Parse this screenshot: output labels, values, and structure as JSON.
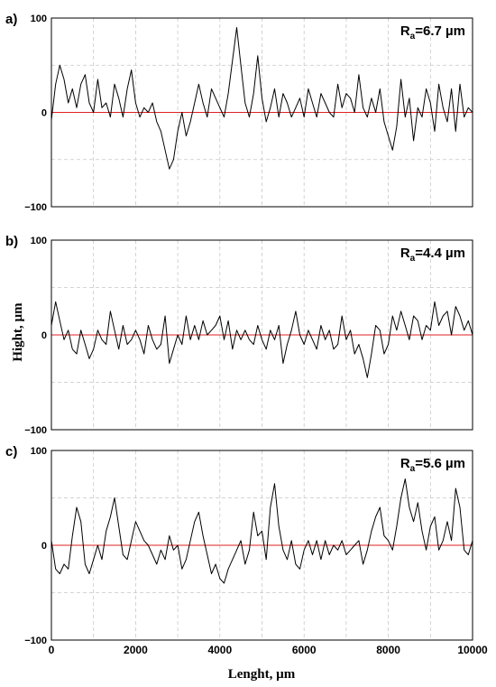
{
  "figure": {
    "y_axis_title": "Hight, µm",
    "x_axis_title": "Lenght, µm",
    "x_tick_labels": [
      "0",
      "2000",
      "4000",
      "6000",
      "8000",
      "10000"
    ]
  },
  "chart_data": [
    {
      "type": "line",
      "panel_label": "a)",
      "ra_symbol": "R",
      "ra_sub": "a",
      "ra_value": "=6.7 µm",
      "y_tick_labels": [
        "100",
        "0",
        "−100"
      ],
      "xlim": [
        0,
        10000
      ],
      "ylim": [
        -100,
        100
      ],
      "grid": true,
      "x": [
        0,
        100,
        200,
        300,
        400,
        500,
        600,
        700,
        800,
        900,
        1000,
        1100,
        1200,
        1300,
        1400,
        1500,
        1600,
        1700,
        1800,
        1900,
        2000,
        2100,
        2200,
        2300,
        2400,
        2500,
        2600,
        2700,
        2800,
        2900,
        3000,
        3100,
        3200,
        3300,
        3400,
        3500,
        3600,
        3700,
        3800,
        3900,
        4000,
        4100,
        4200,
        4300,
        4400,
        4500,
        4600,
        4700,
        4800,
        4900,
        5000,
        5100,
        5200,
        5300,
        5400,
        5500,
        5600,
        5700,
        5800,
        5900,
        6000,
        6100,
        6200,
        6300,
        6400,
        6500,
        6600,
        6700,
        6800,
        6900,
        7000,
        7100,
        7200,
        7300,
        7400,
        7500,
        7600,
        7700,
        7800,
        7900,
        8000,
        8100,
        8200,
        8300,
        8400,
        8500,
        8600,
        8700,
        8800,
        8900,
        9000,
        9100,
        9200,
        9300,
        9400,
        9500,
        9600,
        9700,
        9800,
        9900,
        10000
      ],
      "y": [
        -8,
        30,
        50,
        35,
        10,
        25,
        5,
        30,
        40,
        10,
        0,
        35,
        5,
        10,
        -5,
        30,
        15,
        -5,
        25,
        45,
        10,
        -5,
        5,
        0,
        10,
        -10,
        -20,
        -40,
        -60,
        -50,
        -20,
        0,
        -25,
        -10,
        10,
        30,
        10,
        -5,
        25,
        15,
        5,
        -5,
        20,
        55,
        90,
        50,
        10,
        -5,
        20,
        60,
        15,
        -10,
        5,
        25,
        -5,
        20,
        10,
        -5,
        5,
        15,
        -5,
        25,
        10,
        -5,
        20,
        10,
        0,
        -5,
        30,
        5,
        20,
        15,
        0,
        40,
        5,
        -5,
        15,
        0,
        25,
        -10,
        -25,
        -40,
        -15,
        35,
        -5,
        15,
        -30,
        5,
        -5,
        25,
        10,
        -20,
        30,
        5,
        -10,
        25,
        -20,
        30,
        -5,
        5,
        0
      ]
    },
    {
      "type": "line",
      "panel_label": "b)",
      "ra_symbol": "R",
      "ra_sub": "a",
      "ra_value": "=4.4 µm",
      "y_tick_labels": [
        "100",
        "0",
        "−100"
      ],
      "xlim": [
        0,
        10000
      ],
      "ylim": [
        -100,
        100
      ],
      "grid": true,
      "x": [
        0,
        100,
        200,
        300,
        400,
        500,
        600,
        700,
        800,
        900,
        1000,
        1100,
        1200,
        1300,
        1400,
        1500,
        1600,
        1700,
        1800,
        1900,
        2000,
        2100,
        2200,
        2300,
        2400,
        2500,
        2600,
        2700,
        2800,
        2900,
        3000,
        3100,
        3200,
        3300,
        3400,
        3500,
        3600,
        3700,
        3800,
        3900,
        4000,
        4100,
        4200,
        4300,
        4400,
        4500,
        4600,
        4700,
        4800,
        4900,
        5000,
        5100,
        5200,
        5300,
        5400,
        5500,
        5600,
        5700,
        5800,
        5900,
        6000,
        6100,
        6200,
        6300,
        6400,
        6500,
        6600,
        6700,
        6800,
        6900,
        7000,
        7100,
        7200,
        7300,
        7400,
        7500,
        7600,
        7700,
        7800,
        7900,
        8000,
        8100,
        8200,
        8300,
        8400,
        8500,
        8600,
        8700,
        8800,
        8900,
        9000,
        9100,
        9200,
        9300,
        9400,
        9500,
        9600,
        9700,
        9800,
        9900,
        10000
      ],
      "y": [
        10,
        35,
        15,
        -5,
        5,
        -15,
        -20,
        5,
        -10,
        -25,
        -15,
        5,
        -5,
        -10,
        25,
        5,
        -15,
        10,
        -10,
        -5,
        5,
        -5,
        -20,
        10,
        -5,
        -15,
        -10,
        20,
        -30,
        -15,
        0,
        -10,
        20,
        -5,
        10,
        -5,
        15,
        0,
        5,
        10,
        20,
        -5,
        15,
        -15,
        5,
        -5,
        5,
        -5,
        -10,
        10,
        -5,
        -15,
        5,
        -5,
        10,
        -30,
        -10,
        5,
        25,
        0,
        -10,
        5,
        -5,
        -15,
        10,
        -5,
        5,
        -15,
        -10,
        20,
        -5,
        5,
        -20,
        -10,
        -25,
        -45,
        -20,
        10,
        5,
        -20,
        -10,
        20,
        5,
        25,
        10,
        -5,
        20,
        15,
        -5,
        10,
        5,
        35,
        10,
        20,
        25,
        0,
        30,
        20,
        5,
        15,
        0
      ]
    },
    {
      "type": "line",
      "panel_label": "c)",
      "ra_symbol": "R",
      "ra_sub": "a",
      "ra_value": "=5.6 µm",
      "y_tick_labels": [
        "100",
        "0",
        "−100"
      ],
      "xlim": [
        0,
        10000
      ],
      "ylim": [
        -100,
        100
      ],
      "grid": true,
      "x": [
        0,
        100,
        200,
        300,
        400,
        500,
        600,
        700,
        800,
        900,
        1000,
        1100,
        1200,
        1300,
        1400,
        1500,
        1600,
        1700,
        1800,
        1900,
        2000,
        2100,
        2200,
        2300,
        2400,
        2500,
        2600,
        2700,
        2800,
        2900,
        3000,
        3100,
        3200,
        3300,
        3400,
        3500,
        3600,
        3700,
        3800,
        3900,
        4000,
        4100,
        4200,
        4300,
        4400,
        4500,
        4600,
        4700,
        4800,
        4900,
        5000,
        5100,
        5200,
        5300,
        5400,
        5500,
        5600,
        5700,
        5800,
        5900,
        6000,
        6100,
        6200,
        6300,
        6400,
        6500,
        6600,
        6700,
        6800,
        6900,
        7000,
        7100,
        7200,
        7300,
        7400,
        7500,
        7600,
        7700,
        7800,
        7900,
        8000,
        8100,
        8200,
        8300,
        8400,
        8500,
        8600,
        8700,
        8800,
        8900,
        9000,
        9100,
        9200,
        9300,
        9400,
        9500,
        9600,
        9700,
        9800,
        9900,
        10000
      ],
      "y": [
        5,
        -25,
        -30,
        -20,
        -25,
        10,
        40,
        25,
        -20,
        -30,
        -15,
        0,
        -15,
        15,
        30,
        50,
        20,
        -10,
        -15,
        5,
        25,
        15,
        5,
        0,
        -10,
        -20,
        -5,
        -15,
        10,
        -5,
        0,
        -25,
        -15,
        5,
        25,
        35,
        10,
        -10,
        -30,
        -20,
        -35,
        -40,
        -25,
        -15,
        -5,
        5,
        -20,
        -5,
        35,
        10,
        15,
        -15,
        40,
        65,
        20,
        -5,
        -15,
        5,
        -20,
        -25,
        -5,
        5,
        -10,
        5,
        -15,
        5,
        -10,
        0,
        -5,
        5,
        -10,
        -5,
        0,
        5,
        -20,
        -5,
        15,
        30,
        40,
        10,
        5,
        -5,
        20,
        50,
        70,
        40,
        25,
        45,
        15,
        -5,
        20,
        30,
        -5,
        5,
        25,
        5,
        60,
        40,
        -5,
        -10,
        5
      ]
    }
  ]
}
